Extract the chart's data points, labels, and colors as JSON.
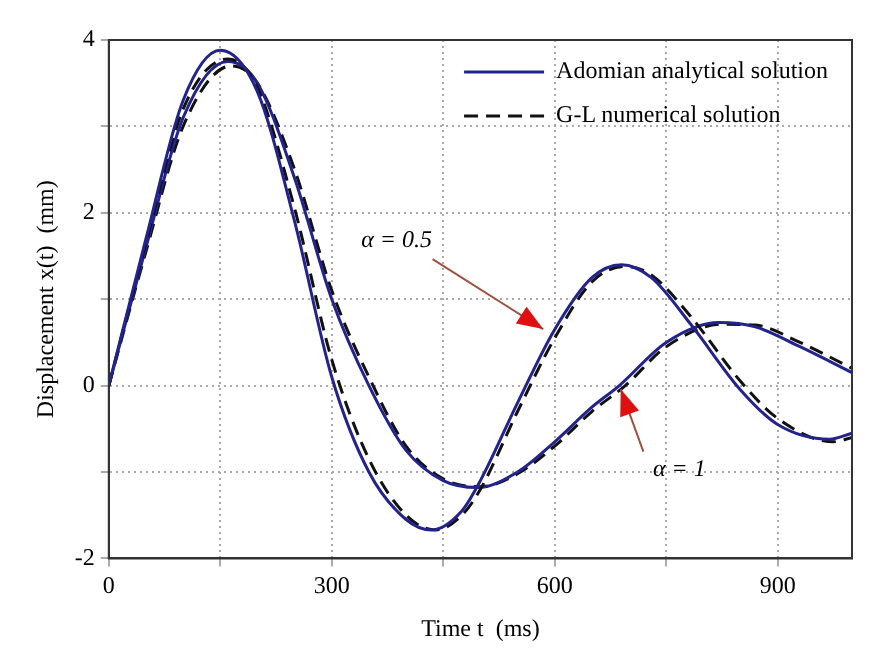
{
  "chart_data": {
    "type": "line",
    "xlabel": "Time t  (ms)",
    "ylabel": "Displacement x(t)  (mm)",
    "xlim": [
      0,
      1000
    ],
    "ylim": [
      -2,
      4
    ],
    "xticks": [
      0,
      {
        "value": 150,
        "label": null
      },
      300,
      {
        "value": 450,
        "label": null
      },
      600,
      {
        "value": 750,
        "label": null
      },
      900
    ],
    "yticks": [
      -2,
      {
        "value": -1,
        "label": null
      },
      0,
      {
        "value": 1,
        "label": null
      },
      2,
      {
        "value": 3,
        "label": null
      },
      4
    ],
    "grid": true,
    "legend": "top right",
    "marker": "none",
    "series": [
      {
        "name": "Adomian analytical solution",
        "color": "#23238e",
        "line_style": "solid",
        "x": [
          0,
          50,
          100,
          150,
          200,
          250,
          300,
          350,
          400,
          434,
          475,
          500,
          550,
          600,
          650,
          690,
          730,
          783,
          850,
          900,
          970,
          1000
        ],
        "values": [
          0,
          1.7,
          3.3,
          3.88,
          3.4,
          1.9,
          0.1,
          -1.0,
          -1.55,
          -1.67,
          -1.45,
          -1.1,
          -0.2,
          0.65,
          1.25,
          1.4,
          1.25,
          0.71,
          -0.05,
          -0.45,
          -0.62,
          -0.55
        ]
      },
      {
        "name": "G-L numerical solution",
        "color": "#111111",
        "line_style": "dashed",
        "x": [
          0,
          50,
          100,
          160,
          200,
          250,
          300,
          350,
          400,
          440,
          475,
          500,
          550,
          600,
          650,
          695,
          730,
          783,
          850,
          900,
          975,
          1000
        ],
        "values": [
          0,
          1.65,
          3.2,
          3.78,
          3.45,
          2.05,
          0.3,
          -0.85,
          -1.5,
          -1.67,
          -1.5,
          -1.2,
          -0.3,
          0.55,
          1.2,
          1.38,
          1.28,
          0.8,
          0.05,
          -0.38,
          -0.65,
          -0.6
        ]
      },
      {
        "color": "#23238e",
        "line_style": "solid",
        "x": [
          0,
          50,
          100,
          160,
          200,
          250,
          300,
          350,
          400,
          450,
          496,
          550,
          600,
          650,
          687,
          750,
          821,
          870,
          930,
          1000
        ],
        "values": [
          0,
          1.6,
          3.1,
          3.75,
          3.5,
          2.4,
          1.0,
          0.0,
          -0.75,
          -1.1,
          -1.18,
          -1.0,
          -0.65,
          -0.25,
          0,
          0.5,
          0.73,
          0.68,
          0.45,
          0.15
        ]
      },
      {
        "color": "#111111",
        "line_style": "dashed",
        "x": [
          0,
          50,
          100,
          165,
          200,
          250,
          300,
          350,
          400,
          450,
          500,
          550,
          600,
          650,
          695,
          750,
          825,
          870,
          930,
          1000
        ],
        "values": [
          0,
          1.55,
          3.0,
          3.7,
          3.5,
          2.5,
          1.1,
          0.1,
          -0.7,
          -1.08,
          -1.17,
          -1.02,
          -0.7,
          -0.3,
          0,
          0.45,
          0.71,
          0.7,
          0.5,
          0.2
        ]
      }
    ],
    "annotations": [
      {
        "text": "α = 0.5",
        "x": 589,
        "y": 0.63
      },
      {
        "text": "α = 1",
        "x": 687,
        "y": 0
      }
    ]
  }
}
